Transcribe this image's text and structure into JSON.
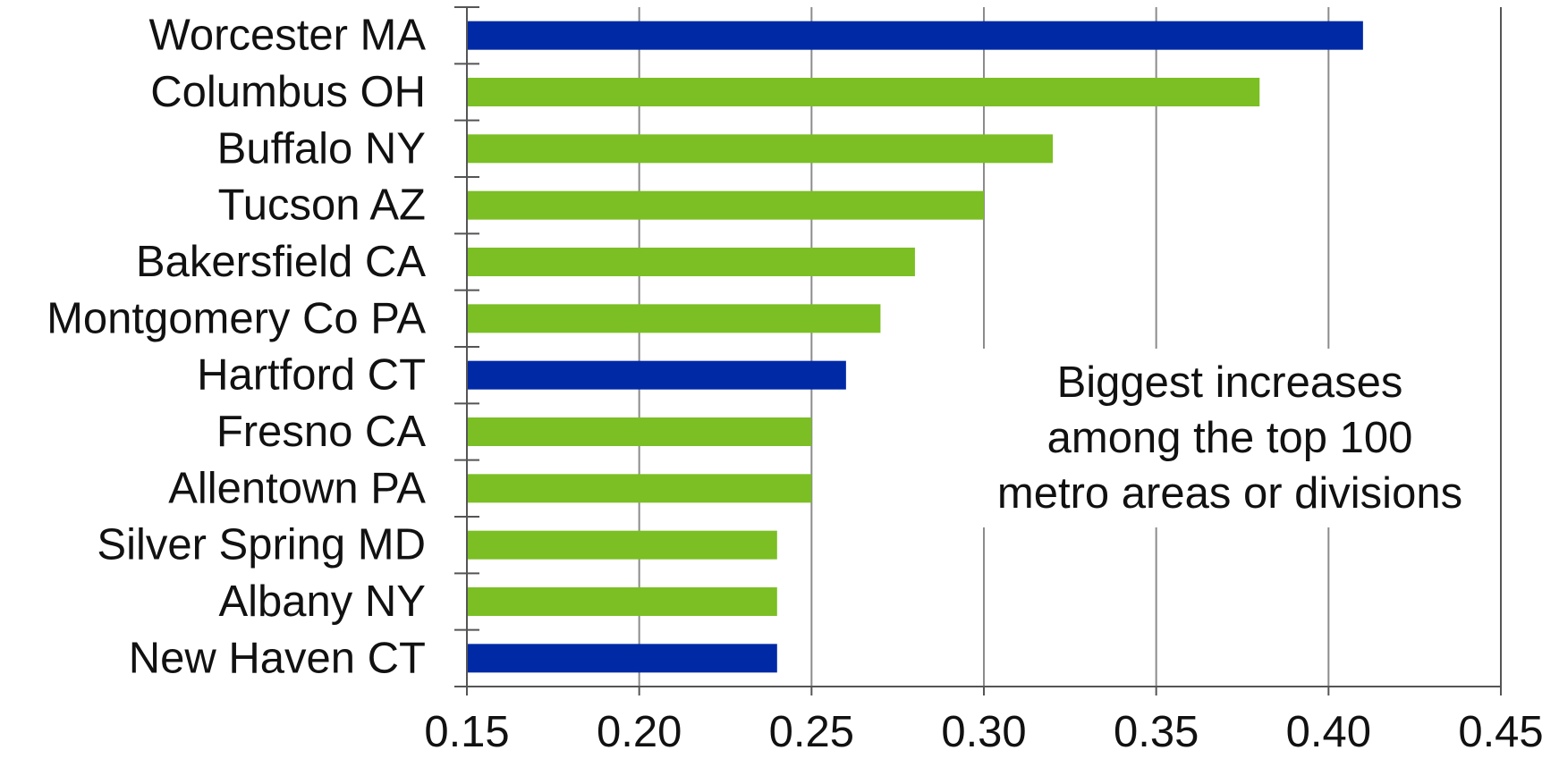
{
  "chart_data": {
    "type": "bar",
    "orientation": "horizontal",
    "categories": [
      "Worcester MA",
      "Columbus OH",
      "Buffalo NY",
      "Tucson AZ",
      "Bakersfield CA",
      "Montgomery Co PA",
      "Hartford CT",
      "Fresno CA",
      "Allentown PA",
      "Silver Spring MD",
      "Albany NY",
      "New Haven CT"
    ],
    "values": [
      0.41,
      0.38,
      0.32,
      0.3,
      0.28,
      0.27,
      0.26,
      0.25,
      0.25,
      0.24,
      0.24,
      0.24
    ],
    "bar_colors": [
      "#0029a6",
      "#7bbf24",
      "#7bbf24",
      "#7bbf24",
      "#7bbf24",
      "#7bbf24",
      "#0029a6",
      "#7bbf24",
      "#7bbf24",
      "#7bbf24",
      "#7bbf24",
      "#0029a6"
    ],
    "xlim": [
      0.15,
      0.45
    ],
    "x_ticks": [
      "0.15",
      "0.20",
      "0.25",
      "0.30",
      "0.35",
      "0.40",
      "0.45"
    ],
    "grid": "vertical",
    "annotation": [
      "Biggest increases",
      "among the top 100",
      "metro areas or divisions"
    ],
    "title": "",
    "xlabel": "",
    "ylabel": ""
  }
}
